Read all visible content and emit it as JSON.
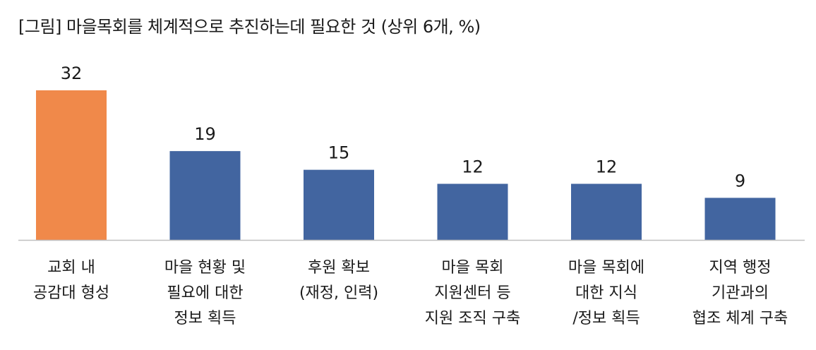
{
  "chart_data": {
    "type": "bar",
    "title": "[그림] 마을목회를 체계적으로 추진하는데 필요한 것 (상위 6개, %)",
    "categories": [
      [
        "교회 내",
        "공감대 형성"
      ],
      [
        "마을 현황 및",
        "필요에 대한",
        "정보 획득"
      ],
      [
        "후원 확보",
        "(재정, 인력)"
      ],
      [
        "마을 목회",
        "지원센터 등",
        "지원 조직 구축"
      ],
      [
        "마을 목회에",
        "대한 지식",
        "/정보 획득"
      ],
      [
        "지역 행정",
        "기관과의",
        "협조 체계 구축"
      ]
    ],
    "values": [
      32,
      19,
      15,
      12,
      12,
      9
    ],
    "colors": [
      "#F0894A",
      "#4265A0",
      "#4265A0",
      "#4265A0",
      "#4265A0",
      "#4265A0"
    ],
    "xlabel": "",
    "ylabel": "",
    "ylim": [
      0,
      32
    ],
    "grid": false,
    "legend": "none"
  }
}
